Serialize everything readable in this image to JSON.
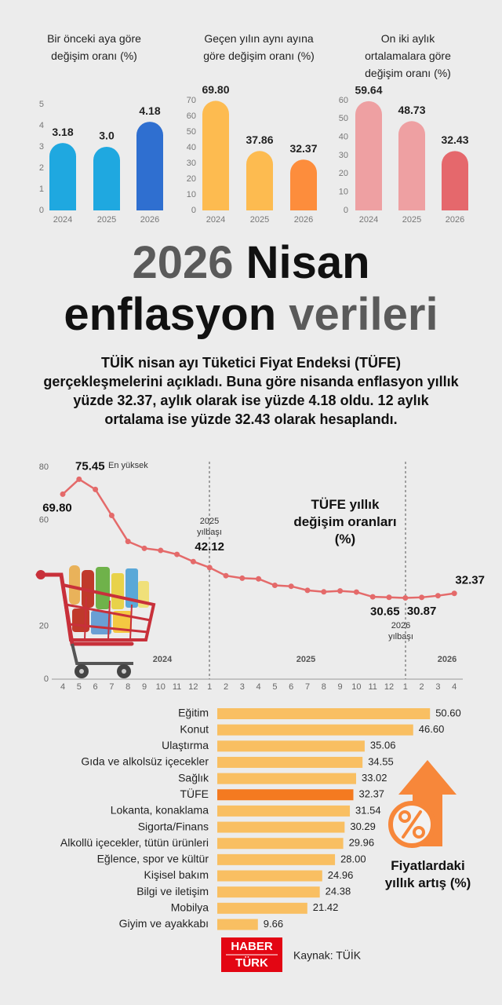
{
  "title": {
    "part1": "2026",
    "part2": "Nisan",
    "part3": "enflasyon",
    "part4": "verileri"
  },
  "body": "TÜİK nisan ayı Tüketici Fiyat Endeksi (TÜFE) gerçekleşmelerini açıkladı. Buna göre nisanda enflasyon yıllık yüzde 32.37, aylık olarak ise yüzde 4.18 oldu. 12 aylık ortalama ise yüzde 32.43 olarak hesaplandı.",
  "chart_data": [
    {
      "type": "bar",
      "title": "Bir önceki aya göre değişim oranı (%)",
      "categories": [
        "2024",
        "2025",
        "2026"
      ],
      "values": [
        3.18,
        3.0,
        4.18
      ],
      "value_labels": [
        "3.18",
        "3.0",
        "4.18"
      ],
      "colors": [
        "#1fa8e0",
        "#1fa8e0",
        "#2f6fd0"
      ],
      "ylim": [
        0,
        5
      ],
      "yticks": [
        0,
        1,
        2,
        3,
        4,
        5
      ]
    },
    {
      "type": "bar",
      "title": "Geçen yılın aynı ayına göre değişim oranı (%)",
      "categories": [
        "2024",
        "2025",
        "2026"
      ],
      "values": [
        69.8,
        37.86,
        32.37
      ],
      "value_labels": [
        "69.80",
        "37.86",
        "32.37"
      ],
      "colors": [
        "#fdbb50",
        "#fdbb50",
        "#fd8d3c"
      ],
      "ylim": [
        0,
        70
      ],
      "yticks": [
        0,
        10,
        20,
        30,
        40,
        50,
        60,
        70
      ]
    },
    {
      "type": "bar",
      "title": "On iki aylık ortalamalara göre değişim oranı (%)",
      "categories": [
        "2024",
        "2025",
        "2026"
      ],
      "values": [
        59.64,
        48.73,
        32.43
      ],
      "value_labels": [
        "59.64",
        "48.73",
        "32.43"
      ],
      "colors": [
        "#eea0a2",
        "#eea0a2",
        "#e5686c"
      ],
      "ylim": [
        0,
        60
      ],
      "yticks": [
        0,
        10,
        20,
        30,
        40,
        50,
        60
      ]
    },
    {
      "type": "line",
      "title": "TÜFE yıllık değişim oranları (%)",
      "categories": [
        "4",
        "5",
        "6",
        "7",
        "8",
        "9",
        "10",
        "11",
        "12",
        "1",
        "2",
        "3",
        "4",
        "5",
        "6",
        "7",
        "8",
        "9",
        "10",
        "11",
        "12",
        "1",
        "2",
        "3",
        "4"
      ],
      "values": [
        69.8,
        75.45,
        71.6,
        61.78,
        51.97,
        49.38,
        48.58,
        47.09,
        44.38,
        42.12,
        39.05,
        38.1,
        37.86,
        35.41,
        35.05,
        33.52,
        32.95,
        33.29,
        32.87,
        31.07,
        30.89,
        30.65,
        30.87,
        31.5,
        32.37
      ],
      "value_labels": [
        "69.80",
        "75.45",
        null,
        null,
        null,
        null,
        null,
        null,
        null,
        "42.12",
        null,
        null,
        null,
        null,
        null,
        null,
        null,
        null,
        null,
        null,
        null,
        "30.65",
        "30.87",
        null,
        "32.37"
      ],
      "color": "#e46a6a",
      "ylim": [
        0,
        80
      ],
      "yticks": [
        0,
        20,
        60,
        80
      ],
      "period_labels": [
        "2024",
        "2025",
        "2026"
      ],
      "annotations": {
        "peak": "En yüksek",
        "start_2025": "2025 yılbaşı",
        "start_2026": "2026 yılbaşı"
      }
    },
    {
      "type": "hbar",
      "title": "Fiyatlardaki yıllık artış (%)",
      "categories": [
        "Eğitim",
        "Konut",
        "Ulaştırma",
        "Gıda ve alkolsüz içecekler",
        "Sağlık",
        "TÜFE",
        "Lokanta, konaklama",
        "Sigorta/Finans",
        "Alkollü içecekler, tütün ürünleri",
        "Eğlence, spor ve kültür",
        "Kişisel bakım",
        "Bilgi ve iletişim",
        "Mobilya",
        "Giyim ve ayakkabı"
      ],
      "values": [
        50.6,
        46.6,
        35.06,
        34.55,
        33.02,
        32.37,
        31.54,
        30.29,
        29.96,
        28.0,
        24.96,
        24.38,
        21.42,
        9.66
      ],
      "value_labels": [
        "50.60",
        "46.60",
        "35.06",
        "34.55",
        "33.02",
        "32.37",
        "31.54",
        "30.29",
        "29.96",
        "28.00",
        "24.96",
        "24.38",
        "21.42",
        "9.66"
      ],
      "colors": [
        "#f9bf62",
        "#f9bf62",
        "#f9bf62",
        "#f9bf62",
        "#f9bf62",
        "#f47a20",
        "#f9bf62",
        "#f9bf62",
        "#f9bf62",
        "#f9bf62",
        "#f9bf62",
        "#f9bf62",
        "#f9bf62",
        "#f9bf62"
      ]
    }
  ],
  "logo": {
    "line1": "HABER",
    "line2": "TÜRK"
  },
  "source": "Kaynak: TÜİK"
}
